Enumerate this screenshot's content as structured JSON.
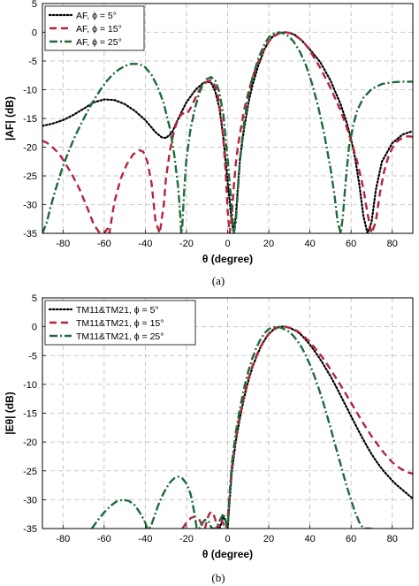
{
  "colors": {
    "black": "#000000",
    "red": "#b5243b",
    "green": "#1d6b3c"
  },
  "captions": [
    "(a)",
    "(b)"
  ],
  "chart_data": [
    {
      "type": "line",
      "xlabel": "θ (degree)",
      "ylabel": "|AF| (dB)",
      "xlim": [
        -90,
        90
      ],
      "ylim": [
        -35,
        5
      ],
      "xticks": [
        -80,
        -60,
        -40,
        -20,
        0,
        20,
        40,
        60,
        80
      ],
      "yticks": [
        5,
        0,
        -5,
        -10,
        -15,
        -20,
        -25,
        -30,
        -35
      ],
      "grid": true,
      "legend_position": "top-left",
      "series": [
        {
          "name": "AF, ϕ = 5°",
          "style": "dotted",
          "color": "#000000",
          "x": [
            -90,
            -85,
            -80,
            -75,
            -70,
            -65,
            -60,
            -55,
            -50,
            -45,
            -40,
            -35,
            -32,
            -30,
            -27,
            -25,
            -22,
            -20,
            -17,
            -15,
            -12,
            -10,
            -8,
            -6,
            -4,
            -2,
            0,
            2,
            3,
            4,
            5,
            6,
            8,
            10,
            12,
            15,
            18,
            20,
            22,
            25,
            28,
            30,
            33,
            36,
            40,
            45,
            50,
            55,
            58,
            60,
            62,
            64,
            66,
            68,
            70,
            72,
            75,
            80,
            85,
            90
          ],
          "y": [
            -16.3,
            -15.9,
            -15.3,
            -14.4,
            -13.3,
            -12.2,
            -11.7,
            -11.8,
            -12.5,
            -13.7,
            -15.3,
            -17.4,
            -18.3,
            -18.4,
            -17.5,
            -15.8,
            -13.6,
            -12.2,
            -10.7,
            -9.8,
            -8.9,
            -8.6,
            -8.8,
            -10.3,
            -13.2,
            -18.5,
            -26,
            -33,
            -35,
            -32,
            -27,
            -22,
            -16.8,
            -12.5,
            -9.3,
            -5.7,
            -2.9,
            -1.6,
            -0.7,
            -0.1,
            0,
            -0.1,
            -0.5,
            -1.4,
            -3,
            -5.2,
            -8.4,
            -12.6,
            -15.9,
            -18.6,
            -22,
            -26.5,
            -32,
            -35,
            -33,
            -27.5,
            -22.5,
            -19.3,
            -17.8,
            -17.2
          ]
        },
        {
          "name": "AF, ϕ = 15°",
          "style": "dashed",
          "color": "#b5243b",
          "x": [
            -90,
            -88,
            -86,
            -84,
            -82,
            -80,
            -76,
            -72,
            -68,
            -65,
            -62,
            -60,
            -58,
            -57.5,
            -55,
            -52,
            -49,
            -46,
            -43,
            -41,
            -39,
            -37,
            -35,
            -33,
            -31,
            -30,
            -28,
            -26,
            -24,
            -22,
            -20,
            -18,
            -16,
            -14,
            -12,
            -10,
            -8,
            -7,
            -6,
            -5,
            -4,
            -3,
            -2,
            -1,
            0,
            1,
            2,
            3,
            4,
            5,
            6,
            8,
            10,
            12,
            15,
            18,
            20,
            22,
            25,
            28,
            30,
            32,
            35,
            38,
            40,
            45,
            50,
            55,
            58,
            60,
            63,
            66,
            68,
            70,
            72,
            74,
            76,
            78,
            80,
            82,
            84,
            86,
            88,
            90
          ],
          "y": [
            -18.9,
            -19.2,
            -19.7,
            -20.4,
            -21.1,
            -22.2,
            -24.5,
            -27.3,
            -30.7,
            -33.5,
            -35,
            -35,
            -34,
            -35,
            -29.5,
            -25.5,
            -23,
            -21.3,
            -20.5,
            -20.8,
            -22.5,
            -26.2,
            -33,
            -35,
            -30,
            -25.5,
            -20.5,
            -17.1,
            -15,
            -14.1,
            -14.3,
            -13.2,
            -11.7,
            -10.2,
            -9.2,
            -8.6,
            -8.3,
            -8.7,
            -9.5,
            -10.7,
            -12.6,
            -15.3,
            -19,
            -24.2,
            -31,
            -35,
            -32,
            -26.8,
            -22.8,
            -19.9,
            -17.6,
            -13.6,
            -10.6,
            -8,
            -5.1,
            -2.7,
            -1.6,
            -0.8,
            -0.2,
            0,
            -0.1,
            -0.4,
            -1.1,
            -2.2,
            -3.2,
            -6.2,
            -9.7,
            -13.7,
            -16.7,
            -18.9,
            -22.5,
            -27.2,
            -31.6,
            -35,
            -33,
            -28,
            -24.3,
            -21.8,
            -20.2,
            -19.1,
            -18.6,
            -18.2,
            -18.1,
            -18.2
          ]
        },
        {
          "name": "AF, ϕ = 25°",
          "style": "dashdot",
          "color": "#1d6b3c",
          "x": [
            -90,
            -88,
            -86,
            -84,
            -82,
            -80,
            -77,
            -74,
            -71,
            -68,
            -65,
            -62,
            -59,
            -56,
            -53,
            -50,
            -47,
            -44,
            -42,
            -40,
            -37,
            -34,
            -31,
            -28,
            -26,
            -24,
            -23,
            -22.5,
            -22,
            -21,
            -20,
            -18,
            -16,
            -14,
            -12,
            -10,
            -8,
            -6,
            -4,
            -2,
            0,
            2,
            3,
            4,
            5,
            6,
            8,
            10,
            12,
            15,
            18,
            20,
            22,
            25,
            28,
            30,
            32,
            35,
            38,
            41,
            44,
            47,
            50,
            52,
            53.5,
            55,
            56,
            57,
            58,
            59,
            61,
            63,
            66,
            70,
            75,
            80,
            85,
            90
          ],
          "y": [
            -35,
            -33.2,
            -30.4,
            -27.8,
            -25.5,
            -23.3,
            -20.5,
            -18,
            -15.8,
            -13.7,
            -11.8,
            -10.1,
            -8.6,
            -7.4,
            -6.5,
            -5.9,
            -5.5,
            -5.5,
            -5.7,
            -6.1,
            -7.4,
            -9.5,
            -12.4,
            -16.8,
            -21.2,
            -27,
            -32,
            -35,
            -33.5,
            -27,
            -22,
            -16.8,
            -13.4,
            -10.8,
            -9,
            -8.1,
            -7.8,
            -8.4,
            -10.4,
            -14.5,
            -22,
            -30.5,
            -35,
            -33,
            -27.5,
            -22.3,
            -15.8,
            -11.4,
            -8,
            -4.5,
            -2,
            -0.9,
            -0.3,
            0,
            -0.3,
            -0.8,
            -1.6,
            -3.3,
            -5.7,
            -8.9,
            -12.9,
            -17.8,
            -23.7,
            -28.5,
            -33,
            -35,
            -32,
            -27.5,
            -23.5,
            -20,
            -16.3,
            -13.6,
            -11.4,
            -9.9,
            -9,
            -8.7,
            -8.6,
            -8.6
          ]
        }
      ]
    },
    {
      "type": "line",
      "xlabel": "θ (degree)",
      "ylabel": "|Eθ| (dB)",
      "xlim": [
        -90,
        90
      ],
      "ylim": [
        -35,
        5
      ],
      "xticks": [
        -80,
        -60,
        -40,
        -20,
        0,
        20,
        40,
        60,
        80
      ],
      "yticks": [
        5,
        0,
        -5,
        -10,
        -15,
        -20,
        -25,
        -30,
        -35
      ],
      "grid": true,
      "legend_position": "top-left",
      "series": [
        {
          "name": "TM11&TM21, ϕ = 5°",
          "style": "dotted",
          "color": "#000000",
          "x": [
            -4,
            -3,
            -2,
            -1,
            0,
            1,
            2,
            4,
            6,
            8,
            10,
            12,
            14,
            16,
            18,
            20,
            22,
            24,
            26,
            28,
            30,
            32,
            34,
            36,
            38,
            40,
            42,
            44,
            46,
            48,
            50,
            52,
            54,
            56,
            58,
            60,
            62,
            64,
            66,
            68,
            70,
            72,
            74,
            76,
            78,
            80,
            82,
            84,
            86,
            88,
            90
          ],
          "y": [
            -35,
            -34,
            -33,
            -33.5,
            -35,
            -30.3,
            -25.3,
            -19.8,
            -15.8,
            -12.4,
            -9.5,
            -7.1,
            -5.2,
            -3.6,
            -2.3,
            -1.3,
            -0.6,
            -0.2,
            0,
            0,
            -0.2,
            -0.5,
            -0.9,
            -1.5,
            -2.3,
            -3.1,
            -4.1,
            -5.1,
            -6.2,
            -7.4,
            -8.6,
            -9.9,
            -11.3,
            -12.7,
            -14.1,
            -15.5,
            -16.9,
            -18.3,
            -19.6,
            -20.9,
            -22.1,
            -23.2,
            -24.2,
            -25.1,
            -25.9,
            -26.7,
            -27.4,
            -28,
            -28.6,
            -29.2,
            -29.8
          ]
        },
        {
          "name": "TM11&TM21, ϕ = 15°",
          "style": "dashed",
          "color": "#b5243b",
          "x": [
            -22,
            -20,
            -18,
            -16,
            -14,
            -13,
            -12,
            -11,
            -10,
            -9,
            -8,
            -7,
            -6,
            -5,
            -4,
            -3,
            -2,
            -1,
            0,
            1,
            2,
            4,
            6,
            8,
            10,
            12,
            14,
            16,
            18,
            20,
            22,
            24,
            26,
            28,
            30,
            32,
            34,
            36,
            38,
            40,
            42,
            44,
            46,
            48,
            50,
            52,
            54,
            56,
            58,
            60,
            62,
            64,
            66,
            68,
            70,
            72,
            74,
            76,
            78,
            80,
            82,
            84,
            86,
            88,
            90
          ],
          "y": [
            -35,
            -34,
            -33.2,
            -32.9,
            -33.3,
            -34,
            -35,
            -35,
            -33.5,
            -32.5,
            -32.1,
            -32.3,
            -33.4,
            -35,
            -34,
            -33.5,
            -34.2,
            -35,
            -33.5,
            -28.7,
            -24.6,
            -19.3,
            -15.3,
            -12,
            -9.2,
            -6.9,
            -5,
            -3.5,
            -2.2,
            -1.2,
            -0.5,
            -0.1,
            0,
            0,
            -0.2,
            -0.4,
            -0.8,
            -1.3,
            -2,
            -2.7,
            -3.5,
            -4.4,
            -5.3,
            -6.3,
            -7.4,
            -8.5,
            -9.6,
            -10.8,
            -12,
            -13.2,
            -14.4,
            -15.6,
            -16.8,
            -17.9,
            -19,
            -20,
            -21,
            -21.9,
            -22.7,
            -23.5,
            -24.1,
            -24.6,
            -25,
            -25.3,
            -25.5
          ]
        },
        {
          "name": "TM11&TM21, ϕ = 25°",
          "style": "dashdot",
          "color": "#1d6b3c",
          "x": [
            -66,
            -63,
            -60,
            -57,
            -54,
            -51,
            -48,
            -45,
            -42,
            -40,
            -39,
            -38,
            -37,
            -36,
            -34,
            -32,
            -30,
            -28,
            -26,
            -24,
            -22,
            -20,
            -18,
            -17,
            -16,
            -15,
            -14,
            -13,
            -12,
            -11,
            -10,
            -9,
            -8,
            -7,
            -6,
            -5,
            -4,
            -2,
            0,
            1,
            2,
            4,
            6,
            8,
            10,
            12,
            14,
            16,
            18,
            20,
            22,
            24,
            26,
            28,
            30,
            32,
            34,
            36,
            38,
            40,
            42,
            44,
            46,
            48,
            50,
            52,
            54,
            56,
            58,
            60,
            62,
            64,
            66,
            68,
            70
          ],
          "y": [
            -35,
            -33.5,
            -32.2,
            -31.1,
            -30.3,
            -30,
            -30.2,
            -31,
            -32.6,
            -34,
            -35,
            -35,
            -34.3,
            -33.3,
            -31.2,
            -29.5,
            -28.1,
            -27,
            -26.3,
            -26,
            -26.3,
            -27.2,
            -29,
            -30.6,
            -32.7,
            -35,
            -35,
            -34.8,
            -33.9,
            -33.5,
            -33.5,
            -33.9,
            -34.8,
            -35,
            -35,
            -34.5,
            -33.7,
            -32.4,
            -35,
            -29.3,
            -23.8,
            -18.3,
            -14.1,
            -10.7,
            -7.8,
            -5.5,
            -3.6,
            -2.2,
            -1.1,
            -0.4,
            -0.1,
            0,
            -0.2,
            -0.5,
            -0.9,
            -1.6,
            -2.5,
            -3.6,
            -5,
            -6.6,
            -8.4,
            -10.4,
            -12.6,
            -15,
            -17.5,
            -20.1,
            -22.7,
            -25.3,
            -27.8,
            -30.1,
            -32.2,
            -33.9,
            -35,
            -35,
            -35
          ]
        }
      ]
    }
  ]
}
